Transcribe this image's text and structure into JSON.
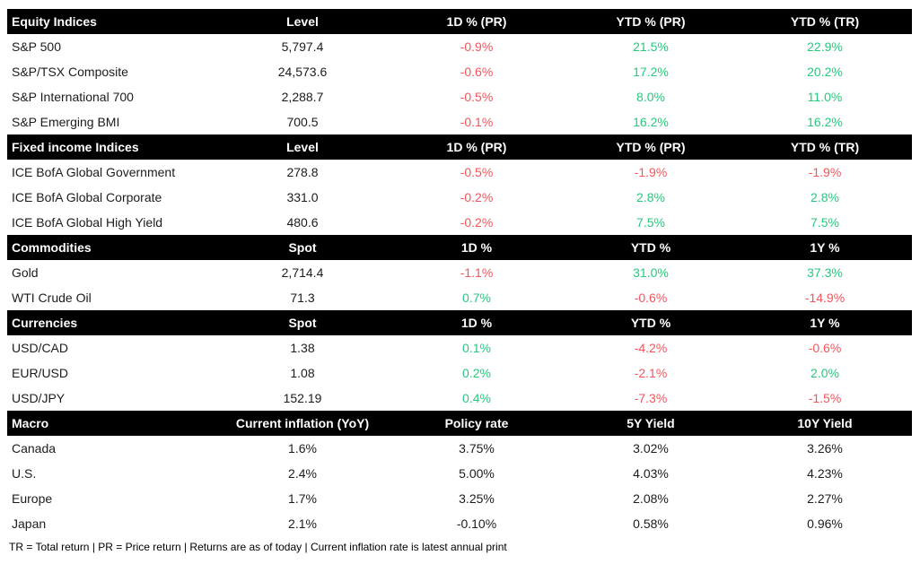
{
  "colors": {
    "header_bg": "#000000",
    "header_fg": "#ffffff",
    "positive": "#29c87e",
    "negative": "#f4555b",
    "neutral_text": "#1c1c1c"
  },
  "chart_data": {
    "type": "table",
    "sections": [
      {
        "name": "Equity Indices",
        "headers": [
          "Equity Indices",
          "Level",
          "1D % (PR)",
          "YTD % (PR)",
          "YTD % (TR)"
        ],
        "rows": [
          {
            "label": "S&P 500",
            "cells": [
              {
                "text": "5,797.4",
                "tone": "neutral"
              },
              {
                "text": "-0.9%",
                "tone": "negative"
              },
              {
                "text": "21.5%",
                "tone": "positive"
              },
              {
                "text": "22.9%",
                "tone": "positive"
              }
            ]
          },
          {
            "label": "S&P/TSX Composite",
            "cells": [
              {
                "text": "24,573.6",
                "tone": "neutral"
              },
              {
                "text": "-0.6%",
                "tone": "negative"
              },
              {
                "text": "17.2%",
                "tone": "positive"
              },
              {
                "text": "20.2%",
                "tone": "positive"
              }
            ]
          },
          {
            "label": "S&P International 700",
            "cells": [
              {
                "text": "2,288.7",
                "tone": "neutral"
              },
              {
                "text": "-0.5%",
                "tone": "negative"
              },
              {
                "text": "8.0%",
                "tone": "positive"
              },
              {
                "text": "11.0%",
                "tone": "positive"
              }
            ]
          },
          {
            "label": "S&P Emerging BMI",
            "cells": [
              {
                "text": "700.5",
                "tone": "neutral"
              },
              {
                "text": "-0.1%",
                "tone": "negative"
              },
              {
                "text": "16.2%",
                "tone": "positive"
              },
              {
                "text": "16.2%",
                "tone": "positive"
              }
            ]
          }
        ]
      },
      {
        "name": "Fixed income Indices",
        "headers": [
          "Fixed income Indices",
          "Level",
          "1D % (PR)",
          "YTD % (PR)",
          "YTD % (TR)"
        ],
        "rows": [
          {
            "label": "ICE BofA Global Government",
            "cells": [
              {
                "text": "278.8",
                "tone": "neutral"
              },
              {
                "text": "-0.5%",
                "tone": "negative"
              },
              {
                "text": "-1.9%",
                "tone": "negative"
              },
              {
                "text": "-1.9%",
                "tone": "negative"
              }
            ]
          },
          {
            "label": "ICE BofA Global Corporate",
            "cells": [
              {
                "text": "331.0",
                "tone": "neutral"
              },
              {
                "text": "-0.2%",
                "tone": "negative"
              },
              {
                "text": "2.8%",
                "tone": "positive"
              },
              {
                "text": "2.8%",
                "tone": "positive"
              }
            ]
          },
          {
            "label": "ICE BofA Global High Yield",
            "cells": [
              {
                "text": "480.6",
                "tone": "neutral"
              },
              {
                "text": "-0.2%",
                "tone": "negative"
              },
              {
                "text": "7.5%",
                "tone": "positive"
              },
              {
                "text": "7.5%",
                "tone": "positive"
              }
            ]
          }
        ]
      },
      {
        "name": "Commodities",
        "headers": [
          "Commodities",
          "Spot",
          "1D %",
          "YTD %",
          "1Y %"
        ],
        "rows": [
          {
            "label": "Gold",
            "cells": [
              {
                "text": "2,714.4",
                "tone": "neutral"
              },
              {
                "text": "-1.1%",
                "tone": "negative"
              },
              {
                "text": "31.0%",
                "tone": "positive"
              },
              {
                "text": "37.3%",
                "tone": "positive"
              }
            ]
          },
          {
            "label": "WTI Crude Oil",
            "cells": [
              {
                "text": "71.3",
                "tone": "neutral"
              },
              {
                "text": "0.7%",
                "tone": "positive"
              },
              {
                "text": "-0.6%",
                "tone": "negative"
              },
              {
                "text": "-14.9%",
                "tone": "negative"
              }
            ]
          }
        ]
      },
      {
        "name": "Currencies",
        "headers": [
          "Currencies",
          "Spot",
          "1D %",
          "YTD %",
          "1Y %"
        ],
        "rows": [
          {
            "label": "USD/CAD",
            "cells": [
              {
                "text": "1.38",
                "tone": "neutral"
              },
              {
                "text": "0.1%",
                "tone": "positive"
              },
              {
                "text": "-4.2%",
                "tone": "negative"
              },
              {
                "text": "-0.6%",
                "tone": "negative"
              }
            ]
          },
          {
            "label": "EUR/USD",
            "cells": [
              {
                "text": "1.08",
                "tone": "neutral"
              },
              {
                "text": "0.2%",
                "tone": "positive"
              },
              {
                "text": "-2.1%",
                "tone": "negative"
              },
              {
                "text": "2.0%",
                "tone": "positive"
              }
            ]
          },
          {
            "label": "USD/JPY",
            "cells": [
              {
                "text": "152.19",
                "tone": "neutral"
              },
              {
                "text": "0.4%",
                "tone": "positive"
              },
              {
                "text": "-7.3%",
                "tone": "negative"
              },
              {
                "text": "-1.5%",
                "tone": "negative"
              }
            ]
          }
        ]
      },
      {
        "name": "Macro",
        "headers": [
          "Macro",
          "Current inflation (YoY)",
          "Policy rate",
          "5Y Yield",
          "10Y Yield"
        ],
        "rows": [
          {
            "label": "Canada",
            "cells": [
              {
                "text": "1.6%",
                "tone": "neutral"
              },
              {
                "text": "3.75%",
                "tone": "neutral"
              },
              {
                "text": "3.02%",
                "tone": "neutral"
              },
              {
                "text": "3.26%",
                "tone": "neutral"
              }
            ]
          },
          {
            "label": "U.S.",
            "cells": [
              {
                "text": "2.4%",
                "tone": "neutral"
              },
              {
                "text": "5.00%",
                "tone": "neutral"
              },
              {
                "text": "4.03%",
                "tone": "neutral"
              },
              {
                "text": "4.23%",
                "tone": "neutral"
              }
            ]
          },
          {
            "label": "Europe",
            "cells": [
              {
                "text": "1.7%",
                "tone": "neutral"
              },
              {
                "text": "3.25%",
                "tone": "neutral"
              },
              {
                "text": "2.08%",
                "tone": "neutral"
              },
              {
                "text": "2.27%",
                "tone": "neutral"
              }
            ]
          },
          {
            "label": "Japan",
            "cells": [
              {
                "text": "2.1%",
                "tone": "neutral"
              },
              {
                "text": "-0.10%",
                "tone": "neutral"
              },
              {
                "text": "0.58%",
                "tone": "neutral"
              },
              {
                "text": "0.96%",
                "tone": "neutral"
              }
            ]
          }
        ]
      }
    ],
    "footnote": "TR = Total return | PR = Price return | Returns are as of today | Current inflation rate is latest annual print"
  }
}
